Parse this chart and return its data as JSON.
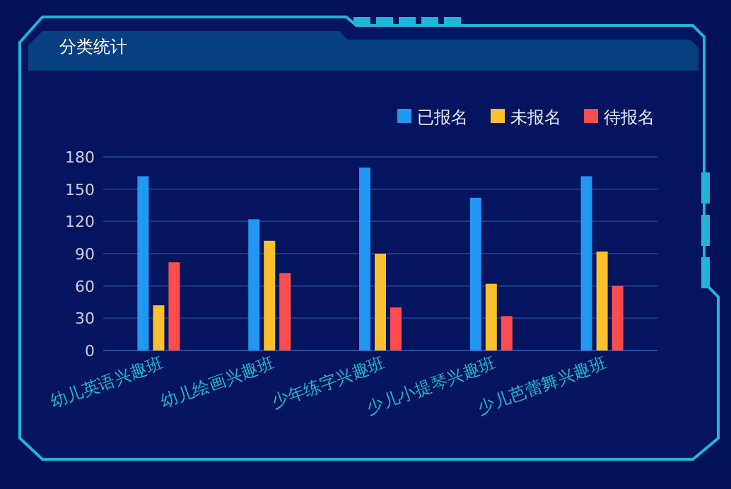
{
  "chart_data": {
    "type": "bar",
    "title": "分类统计",
    "categories": [
      "幼儿英语兴趣班",
      "幼儿绘画兴趣班",
      "少年练字兴趣班",
      "少儿小提琴兴趣班",
      "少儿芭蕾舞兴趣班"
    ],
    "series": [
      {
        "name": "已报名",
        "color": "#2196f3",
        "values": [
          162,
          122,
          170,
          142,
          162
        ]
      },
      {
        "name": "未报名",
        "color": "#fbc02d",
        "values": [
          42,
          102,
          90,
          62,
          92
        ]
      },
      {
        "name": "待报名",
        "color": "#ff4c4c",
        "values": [
          82,
          72,
          40,
          32,
          60
        ]
      }
    ],
    "ylim": [
      0,
      180
    ],
    "yticks": [
      0,
      30,
      60,
      90,
      120,
      150,
      180
    ],
    "grid": "y",
    "legend": "top right"
  }
}
